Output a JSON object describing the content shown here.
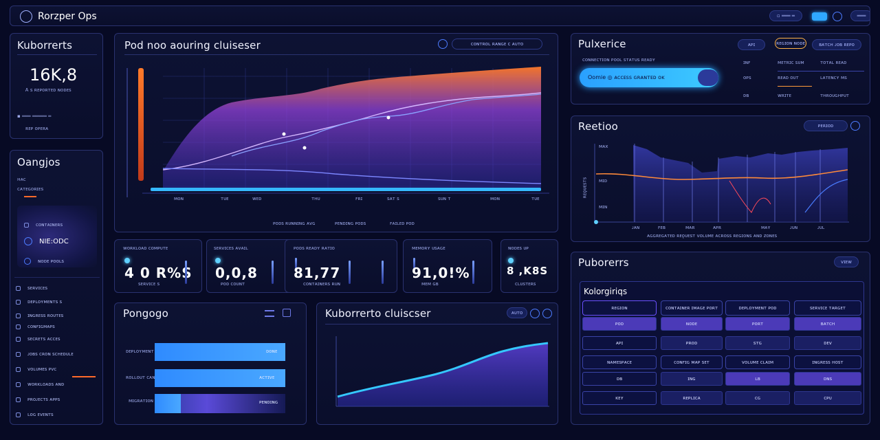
{
  "app": {
    "title": "Rorzper Ops"
  },
  "topbar": {
    "search_label": "▫ ═══ ═",
    "icon_label": "═══"
  },
  "k8s_summary": {
    "title": "Kuborrerts",
    "big_value": "16K,8",
    "caption": "Ꭺ ꜱ ʀᴇᴘᴏʀᴛᴇᴅ ɴᴏᴅᴇꜱ",
    "row1": "▪ ═══ ═════ ═",
    "row2": "ʀᴇᴘ ᴏᴘᴇʀᴀ"
  },
  "categories": {
    "title": "Oangjos",
    "sub": "ʜᴀᴄ",
    "sub2": "ᴄᴀᴛᴇɢᴏʀɪᴇꜱ",
    "items": [
      {
        "label": "ᴄᴏɴᴛᴀɪɴᴇʀꜱ"
      },
      {
        "label": "NIE:ODC"
      },
      {
        "label": "ɴᴏᴅᴇ ᴘᴏᴏʟꜱ"
      }
    ],
    "nav": [
      {
        "label": "ꜱᴇʀᴠɪᴄᴇꜱ"
      },
      {
        "label": "ᴅᴇᴘʟᴏʏᴍᴇɴᴛꜱ ꜱ"
      },
      {
        "label": "ɪɴɢʀᴇꜱꜱ ʀᴏᴜᴛᴇꜱ"
      },
      {
        "label": "ᴄᴏɴꜰɪɢᴍᴀᴘꜱ"
      },
      {
        "label": "ꜱᴇᴄʀᴇᴛꜱ ᴀᴄᴄᴇꜱ"
      },
      {
        "label": "ᴊᴏʙꜱ ᴄʀᴏɴ ꜱᴄʜᴇᴅᴜʟᴇ"
      },
      {
        "label": "ᴠᴏʟᴜᴍᴇꜱ ᴘᴠᴄ"
      },
      {
        "label": "ᴡᴏʀᴋʟᴏᴀᴅꜱ ᴀɴᴅ"
      },
      {
        "label": "ᴘʀᴏᴊᴇᴄᴛꜱ ᴀᴘᴘꜱ"
      },
      {
        "label": "ʟᴏɢ ᴇᴠᴇɴᴛꜱ"
      }
    ]
  },
  "main_chart": {
    "title": "Pod noo aouring cluiseser",
    "controls": "ᴄᴏɴᴛʀᴏʟ ʀᴀɴɢᴇ  ᴄ ᴀᴜᴛᴏ",
    "x_ticks": [
      "ᴍᴏɴ",
      "ᴛᴜᴇ",
      "ᴡᴇᴅ",
      "ᴛʜᴜ",
      "ꜰʀɪ",
      "ꜱᴀᴛ ꜱ",
      "ꜱᴜɴ ᴛ",
      "ᴍᴏɴ",
      "ᴛᴜᴇ"
    ],
    "legend": [
      "ᴘᴏᴅꜱ ʀᴜɴɴɪɴɢ ᴀᴠɢ",
      "ᴘᴇɴᴅɪɴɢ ᴘᴏᴅꜱ",
      "ꜰᴀɪʟᴇᴅ ᴘᴏᴅ"
    ]
  },
  "stats": [
    {
      "label": "ᴡᴏʀᴋʟᴏᴀᴅ ᴄᴏᴍᴘᴜᴛᴇ",
      "value": "4 0 R%S",
      "sub": "ꜱᴇʀᴠɪᴄᴇ ꜱ"
    },
    {
      "label": "ꜱᴇʀᴠɪᴄᴇꜱ ᴀᴠᴀɪʟ",
      "value": "0,0,8",
      "sub": "ᴘᴏᴅ ᴄᴏᴜɴᴛ"
    },
    {
      "label": "ᴘᴏᴅꜱ ʀᴇᴀᴅʏ ʀᴀᴛɪᴏ",
      "value": "81,77",
      "sub": "ᴄᴏɴᴛᴀɪɴᴇʀꜱ ʀᴜɴ"
    },
    {
      "label": "ᴍᴇᴍᴏʀʏ ᴜꜱᴀɢᴇ",
      "value": "91,0!%",
      "sub": "ᴍᴇᴍ ɢʙ"
    },
    {
      "label": "ɴᴏᴅᴇꜱ ᴜᴘ",
      "value": "8 ,K8S",
      "sub": "ᴄʟᴜꜱᴛᴇʀꜱ"
    }
  ],
  "pulse_panel": {
    "title": "Pulxerice",
    "pills": [
      "ᴀᴘɪ",
      "ʀᴇɢɪᴏɴ ɴᴏᴅᴇ",
      "ʙᴀᴛᴄʜ ᴊᴏʙ ʀᴇᴘᴏ"
    ],
    "subtitle": "ᴄᴏɴɴᴇᴄᴛɪᴏɴ ᴘᴏᴏʟ ꜱᴛᴀᴛᴜꜱ ʀᴇᴀᴅʏ",
    "bar_label": "Oomie  ◎  ᴀᴄᴄᴇꜱꜱ ɢʀᴀɴᴛᴇᴅ ᴏᴋ",
    "rows": [
      [
        "ɪɴꜰ",
        "ᴍᴇᴛʀɪᴄ ꜱᴜᴍ",
        "ᴛᴏᴛᴀʟ ʀᴇᴀᴅ"
      ],
      [
        "ᴏᴘꜱ",
        "ʀᴇᴀᴅ ᴏᴜᴛ",
        "ʟᴀᴛᴇɴᴄʏ ᴍꜱ"
      ],
      [
        "ᴅʙ",
        "ᴡʀɪᴛᴇ",
        "ᴛʜʀᴏᴜɢʜᴘᴜᴛ"
      ]
    ]
  },
  "region_chart": {
    "title": "Reetioo",
    "pill": "ᴘᴇʀɪᴏᴅ",
    "y_ticks": [
      "ᴍᴀx",
      "ᴍɪᴅ",
      "ᴍɪɴ"
    ],
    "y_label": "ʀᴇǫᴜᴇꜱᴛꜱ",
    "x_ticks": [
      "ᴊᴀɴ",
      "ꜰᴇʙ",
      "ᴍᴀʀ",
      "ᴀᴘʀ",
      "ᴍᴀʏ",
      "ᴊᴜɴ",
      "ᴊᴜʟ"
    ],
    "caption": "ᴀɢɢʀᴇɢᴀᴛᴇᴅ ʀᴇǫᴜᴇꜱᴛ ᴠᴏʟᴜᴍᴇ ᴀᴄʀᴏꜱꜱ ʀᴇɢɪᴏɴꜱ ᴀɴᴅ ᴢᴏɴᴇꜱ"
  },
  "progress_panel": {
    "title": "Pongogo",
    "bars": [
      {
        "label": "ᴅᴇᴘʟᴏʏᴍᴇɴᴛ ᴀ",
        "value_label": "ᴅᴏɴᴇ",
        "pct": 100
      },
      {
        "label": "ʀᴏʟʟᴏᴜᴛ ᴄᴀɴᴀʀʏ",
        "value_label": "ᴀᴄᴛɪᴠᴇ",
        "pct": 100
      },
      {
        "label": "ᴍɪɢʀᴀᴛɪᴏɴ ᴊᴏʙ",
        "value_label": "ᴘᴇɴᴅɪɴɢ",
        "pct": 20
      }
    ]
  },
  "cluster_chart": {
    "title": "Kuborrerto cluiscser",
    "pill": "ᴀᴜᴛᴏ"
  },
  "pods_panel": {
    "title": "Puborerrs",
    "pill": "ᴠɪᴇᴡ",
    "inner_title": "Kolorgiriqs",
    "headers_top": [
      "ʀᴇɢɪᴏɴ",
      "ᴄᴏɴᴛᴀɪɴᴇʀ ɪᴍᴀɢᴇ ᴘᴏʀᴛ",
      "ᴅᴇᴘʟᴏʏᴍᴇɴᴛ ᴘᴏᴅ",
      "ꜱᴇʀᴠɪᴄᴇ ᴛᴀʀɢᴇᴛ"
    ],
    "headers_mid": [
      "ɴᴀᴍᴇꜱᴘᴀᴄᴇ",
      "ᴄᴏɴꜰɪɢ ᴍᴀᴘ ꜱᴇᴛ",
      "ᴠᴏʟᴜᴍᴇ ᴄʟᴀɪᴍ",
      "ɪɴɢʀᴇꜱꜱ ʜᴏꜱᴛ"
    ],
    "cells": [
      [
        "ᴘᴏᴅ",
        "ɴᴏᴅᴇ",
        "ᴘᴏʀᴛ",
        "ʙᴀᴛᴄʜ"
      ],
      [
        "ᴀᴘɪ",
        "ᴘʀᴏᴅ",
        "ꜱᴛɢ",
        "ᴅᴇᴠ"
      ],
      [
        "ᴅʙ",
        "ɪɴɢ",
        "ʟʙ",
        "ᴅɴꜱ"
      ],
      [
        "ᴋᴇʏ",
        "ʀᴇᴘʟɪᴄᴀ",
        "ᴄɢ",
        "ᴄᴘᴜ"
      ]
    ]
  }
}
